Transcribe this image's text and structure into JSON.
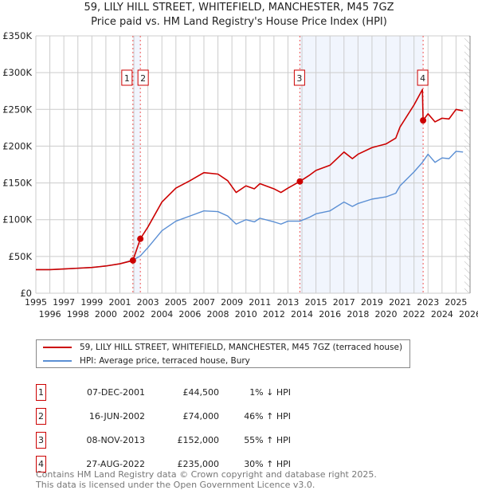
{
  "chart_data": {
    "type": "line",
    "title": "59, LILY HILL STREET, WHITEFIELD, MANCHESTER, M45 7GZ",
    "subtitle": "Price paid vs. HM Land Registry's House Price Index (HPI)",
    "xlim": [
      1995,
      2026
    ],
    "ylim": [
      0,
      350000
    ],
    "x_ticks": [
      "1995",
      "1996",
      "1997",
      "1998",
      "1999",
      "2000",
      "2001",
      "2002",
      "2003",
      "2004",
      "2005",
      "2006",
      "2007",
      "2008",
      "2009",
      "2010",
      "2011",
      "2012",
      "2013",
      "2014",
      "2015",
      "2016",
      "2017",
      "2018",
      "2019",
      "2020",
      "2021",
      "2022",
      "2023",
      "2024",
      "2025",
      "2026"
    ],
    "y_ticks": [
      {
        "v": 0,
        "label": "£0"
      },
      {
        "v": 50000,
        "label": "£50K"
      },
      {
        "v": 100000,
        "label": "£100K"
      },
      {
        "v": 150000,
        "label": "£150K"
      },
      {
        "v": 200000,
        "label": "£200K"
      },
      {
        "v": 250000,
        "label": "£250K"
      },
      {
        "v": 300000,
        "label": "£300K"
      },
      {
        "v": 350000,
        "label": "£350K"
      }
    ],
    "grid": true,
    "series": [
      {
        "name": "59, LILY HILL STREET, WHITEFIELD, MANCHESTER, M45 7GZ (terraced house)",
        "color": "#cc0000",
        "x": [
          1995,
          1996,
          1997,
          1998,
          1999,
          2000,
          2001,
          2001.93,
          2002.46,
          2003,
          2004,
          2005,
          2006,
          2007,
          2008,
          2008.7,
          2009.3,
          2010,
          2010.6,
          2011,
          2012,
          2012.5,
          2013,
          2013.85,
          2014.5,
          2015,
          2016,
          2017,
          2017.6,
          2018,
          2019,
          2020,
          2020.7,
          2021,
          2022,
          2022.6,
          2022.65,
          2023,
          2023.5,
          2024,
          2024.5,
          2025,
          2025.5
        ],
        "y": [
          32000,
          32000,
          33000,
          34000,
          35000,
          37000,
          40000,
          44500,
          74000,
          90000,
          124000,
          143000,
          153000,
          164000,
          162000,
          153000,
          137000,
          146000,
          142000,
          149000,
          142000,
          137000,
          143000,
          152000,
          160000,
          167000,
          174000,
          192000,
          183000,
          189000,
          198000,
          203000,
          211000,
          226000,
          256000,
          277000,
          235000,
          244000,
          233000,
          238000,
          237000,
          250000,
          248000
        ]
      },
      {
        "name": "HPI: Average price, terraced house, Bury",
        "color": "#5b8fd4",
        "x": [
          1995,
          1996,
          1997,
          1998,
          1999,
          2000,
          2001,
          2001.93,
          2002.46,
          2003,
          2004,
          2005,
          2006,
          2007,
          2008,
          2008.7,
          2009.3,
          2010,
          2010.6,
          2011,
          2012,
          2012.5,
          2013,
          2013.85,
          2014.5,
          2015,
          2016,
          2017,
          2017.6,
          2018,
          2019,
          2020,
          2020.7,
          2021,
          2022,
          2022.6,
          2023,
          2023.5,
          2024,
          2024.5,
          2025,
          2025.5
        ],
        "y": [
          32000,
          32000,
          33000,
          34000,
          35000,
          37000,
          40000,
          45000,
          50700,
          62000,
          85000,
          98000,
          105000,
          112000,
          111000,
          105000,
          94000,
          100000,
          97000,
          102000,
          97000,
          94000,
          98000,
          98000,
          103000,
          108000,
          112000,
          124000,
          118000,
          122000,
          128000,
          131000,
          136000,
          146000,
          165000,
          178000,
          189000,
          178000,
          184000,
          183000,
          193000,
          192000
        ]
      }
    ],
    "sales": [
      {
        "n": "1",
        "x": 2001.93,
        "y": 44500,
        "date": "07-DEC-2001",
        "price": "£44,500",
        "hpi": "1% ↓ HPI"
      },
      {
        "n": "2",
        "x": 2002.46,
        "y": 74000,
        "date": "16-JUN-2002",
        "price": "£74,000",
        "hpi": "46% ↑ HPI"
      },
      {
        "n": "3",
        "x": 2013.85,
        "y": 152000,
        "date": "08-NOV-2013",
        "price": "£152,000",
        "hpi": "55% ↑ HPI"
      },
      {
        "n": "4",
        "x": 2022.65,
        "y": 235000,
        "date": "27-AUG-2022",
        "price": "£235,000",
        "hpi": "30% ↑ HPI"
      }
    ],
    "shaded_ranges": [
      [
        2001.93,
        2002.46
      ],
      [
        2013.85,
        2022.65
      ]
    ],
    "forecast_hatch_from": 2025.6,
    "legend_position": "below"
  },
  "footer": [
    "Contains HM Land Registry data © Crown copyright and database right 2025.",
    "This data is licensed under the Open Government Licence v3.0."
  ]
}
